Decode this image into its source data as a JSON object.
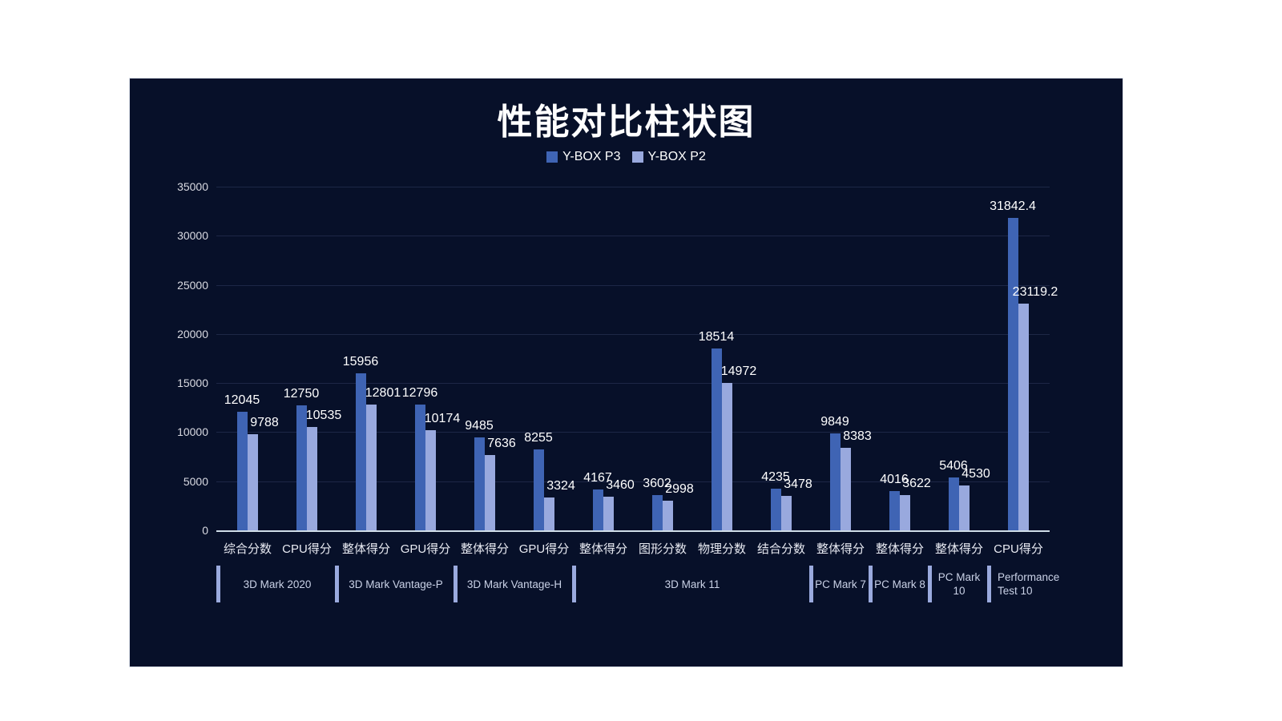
{
  "title": "性能对比柱状图",
  "legend": [
    {
      "name": "Y-BOX P3",
      "color": "#3f64b4"
    },
    {
      "name": "Y-BOX P2",
      "color": "#99a9de"
    }
  ],
  "chart_data": {
    "type": "bar",
    "title": "性能对比柱状图",
    "categories": [
      "综合分数",
      "CPU得分",
      "整体得分",
      "GPU得分",
      "整体得分",
      "GPU得分",
      "整体得分",
      "图形分数",
      "物理分数",
      "结合分数",
      "整体得分",
      "整体得分",
      "整体得分",
      "CPU得分"
    ],
    "series": [
      {
        "name": "Y-BOX P3",
        "color": "#3f64b4",
        "values": [
          12045,
          12750,
          15956,
          12796,
          9485,
          8255,
          4167,
          3602,
          18514,
          4235,
          9849,
          4016,
          5406,
          31842.4
        ]
      },
      {
        "name": "Y-BOX P2",
        "color": "#99a9de",
        "values": [
          9788,
          10535,
          12801,
          10174,
          7636,
          3324,
          3460,
          2998,
          14972,
          3478,
          8383,
          3622,
          4530,
          23119.2
        ]
      }
    ],
    "groups": [
      {
        "label": "3D Mark 2020",
        "start": 0,
        "span": 2
      },
      {
        "label": "3D Mark Vantage-P",
        "start": 2,
        "span": 2
      },
      {
        "label": "3D Mark Vantage-H",
        "start": 4,
        "span": 2
      },
      {
        "label": "3D Mark 11",
        "start": 6,
        "span": 4
      },
      {
        "label": "PC Mark 7",
        "start": 10,
        "span": 1
      },
      {
        "label": "PC Mark 8",
        "start": 11,
        "span": 1
      },
      {
        "label": "PC Mark 10",
        "start": 12,
        "span": 1
      },
      {
        "label": "Performance Test 10",
        "start": 13,
        "span": 1,
        "wrap": true
      }
    ],
    "ylim": [
      0,
      35000
    ],
    "yticks": [
      0,
      5000,
      10000,
      15000,
      20000,
      25000,
      30000,
      35000
    ],
    "xlabel": "",
    "ylabel": "",
    "grid": true,
    "legend_position": "top"
  }
}
